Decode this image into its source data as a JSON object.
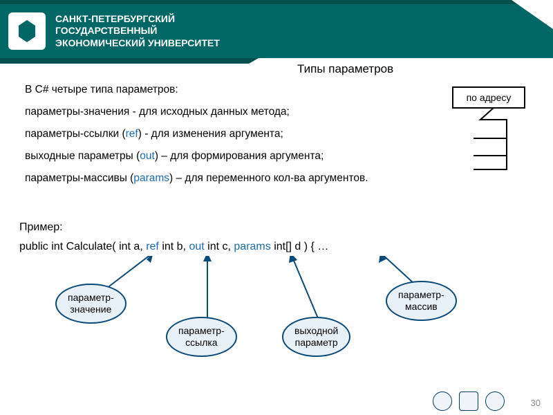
{
  "header": {
    "university_line1": "САНКТ-ПЕТЕРБУРГСКИЙ",
    "university_line2": "ГОСУДАРСТВЕННЫЙ",
    "university_line3": "ЭКОНОМИЧЕСКИЙ УНИВЕРСИТЕТ",
    "bg_color": "#006666",
    "stripe_color": "#004d4d"
  },
  "title": "Типы параметров",
  "intro": "В C# четыре типа параметров:",
  "bullets": {
    "b1_pre": " параметры-значения - для исходных данных метода;",
    "b2_pre": " параметры-ссылки (",
    "b2_kw": "ref",
    "b2_post": ") - для изменения аргумента;",
    "b3_pre": " выходные параметры (",
    "b3_kw": "out",
    "b3_post": ") – для формирования аргумента;",
    "b4_pre": "  параметры-массивы (",
    "b4_kw": "params",
    "b4_post": ")  –  для  переменного  кол-ва аргументов."
  },
  "address_label": "по адресу",
  "example_label": "Пример:",
  "code": {
    "t0": "public int Calculate( int a, ",
    "kw_ref": "ref",
    "t1": " int b, ",
    "kw_out": "out",
    "t2": " int c, ",
    "kw_params": "params",
    "t3": " int[] d ) { …"
  },
  "callouts": {
    "c1": "параметр-\nзначение",
    "c2": "параметр-\nссылка",
    "c3": "выходной\nпараметр",
    "c4": "параметр-\nмассив",
    "border_color": "#0a4a7a",
    "fill_color": "#e8f0f8"
  },
  "page_number": "30",
  "colors": {
    "link": "#1a6bb0",
    "text": "#000000"
  }
}
